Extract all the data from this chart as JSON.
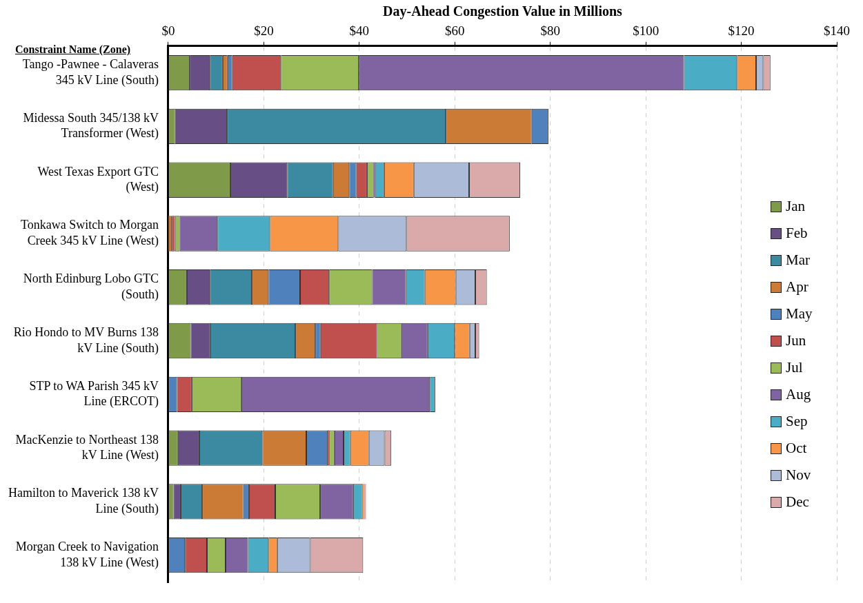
{
  "chart_data": {
    "type": "bar",
    "orientation": "horizontal",
    "stacked": true,
    "xlabel": "Day-Ahead Congestion Value in Millions",
    "ylabel": "Constraint  Name (Zone)",
    "categories": [
      "Tango -Pawnee - Calaveras 345 kV Line (South)",
      "Midessa South 345/138 kV Transformer (West)",
      "West Texas Export GTC (West)",
      "Tonkawa Switch to Morgan Creek 345 kV Line (West)",
      "North Edinburg Lobo GTC (South)",
      "Rio Hondo to MV Burns 138 kV Line (South)",
      "STP to WA Parish 345 kV Line (ERCOT)",
      "MacKenzie to Northeast 138 kV Line (West)",
      "Hamilton to Maverick 138 kV Line (South)",
      "Morgan Creek to Navigation 138 kV Line (West)"
    ],
    "series": [
      {
        "name": "Jan",
        "color": "#7f9a48",
        "values": [
          4.5,
          1.4,
          13.0,
          0,
          3.9,
          4.7,
          0,
          2.0,
          1.1,
          0
        ]
      },
      {
        "name": "Feb",
        "color": "#674f86",
        "values": [
          4.2,
          10.9,
          11.9,
          0,
          4.8,
          4.1,
          0,
          4.5,
          1.5,
          0
        ]
      },
      {
        "name": "Mar",
        "color": "#3b8aa2",
        "values": [
          2.7,
          45.8,
          9.6,
          0,
          8.8,
          17.8,
          0,
          13.2,
          4.5,
          0
        ]
      },
      {
        "name": "Apr",
        "color": "#cc7b37",
        "values": [
          1.0,
          18.0,
          3.4,
          0.6,
          3.5,
          4.2,
          0,
          9.2,
          8.6,
          0
        ]
      },
      {
        "name": "May",
        "color": "#4f81bd",
        "values": [
          1.0,
          3.5,
          1.5,
          0,
          6.6,
          1.1,
          1.8,
          4.5,
          1.2,
          3.5
        ]
      },
      {
        "name": "Jun",
        "color": "#c0504d",
        "values": [
          10.2,
          0,
          2.2,
          0.8,
          6.1,
          11.8,
          3.1,
          0.3,
          5.5,
          4.6
        ]
      },
      {
        "name": "Jul",
        "color": "#9bbb59",
        "values": [
          16.3,
          0,
          1.4,
          1.0,
          9.0,
          5.1,
          10.4,
          1.1,
          9.4,
          3.9
        ]
      },
      {
        "name": "Aug",
        "color": "#8064a2",
        "values": [
          68.1,
          0,
          0.3,
          7.9,
          7.1,
          5.5,
          39.5,
          1.9,
          6.9,
          4.7
        ]
      },
      {
        "name": "Sep",
        "color": "#4bacc6",
        "values": [
          11.1,
          0,
          1.9,
          11.0,
          3.9,
          5.7,
          1.1,
          1.4,
          2.0,
          4.3
        ]
      },
      {
        "name": "Oct",
        "color": "#f79646",
        "values": [
          4.0,
          0,
          6.2,
          14.3,
          6.5,
          3.1,
          0,
          3.9,
          0.3,
          1.8
        ]
      },
      {
        "name": "Nov",
        "color": "#abbbd8",
        "values": [
          1.5,
          0,
          11.6,
          14.3,
          4.1,
          1.2,
          0,
          3.3,
          0,
          6.9
        ]
      },
      {
        "name": "Dec",
        "color": "#d9aaa9",
        "values": [
          1.5,
          0,
          10.7,
          21.6,
          2.4,
          0.8,
          0,
          1.4,
          0.4,
          11.1
        ]
      }
    ],
    "xlim": [
      0,
      140
    ],
    "xticks": [
      {
        "value": 0,
        "label": "$0"
      },
      {
        "value": 20,
        "label": "$20"
      },
      {
        "value": 40,
        "label": "$40"
      },
      {
        "value": 60,
        "label": "$60"
      },
      {
        "value": 80,
        "label": "$80"
      },
      {
        "value": 100,
        "label": "$100"
      },
      {
        "value": 120,
        "label": "$120"
      },
      {
        "value": 140,
        "label": "$140"
      }
    ],
    "grid": "x",
    "legend": "right"
  }
}
